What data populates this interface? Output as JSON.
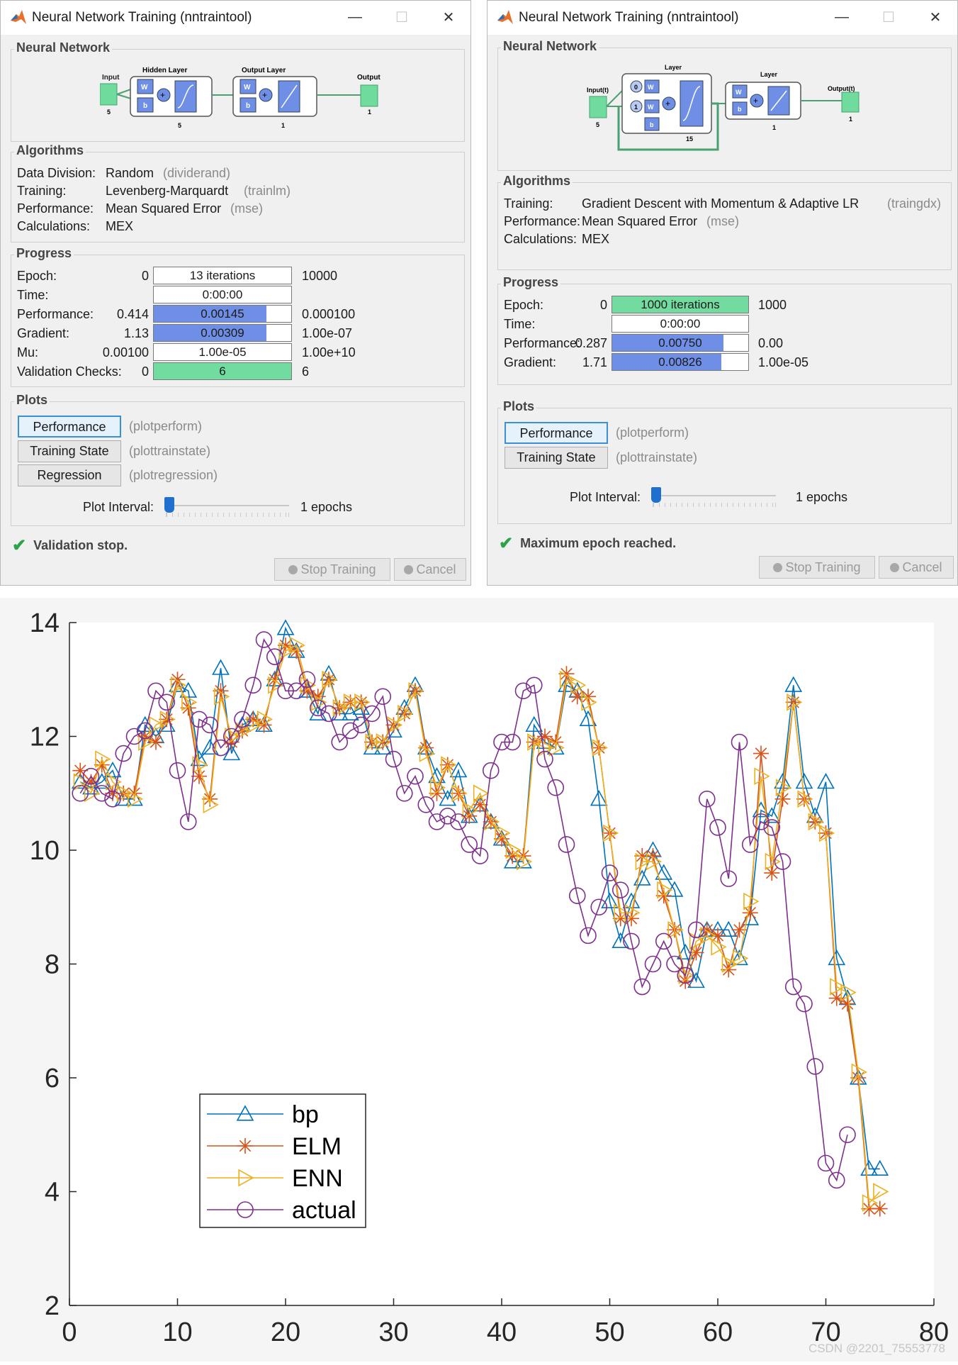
{
  "left_window": {
    "title": "Neural Network Training (nntraintool)",
    "network": {
      "group_title": "Neural Network",
      "input_label": "Input",
      "hidden_label": "Hidden Layer",
      "output_layer_label": "Output Layer",
      "output_label": "Output",
      "input_size": "5",
      "hidden_size": "5",
      "output_layer_size": "1",
      "output_size": "1",
      "w": "W",
      "b": "b"
    },
    "algorithms": {
      "group_title": "Algorithms",
      "rows": [
        {
          "label": "Data Division:",
          "value": "Random",
          "fn": "(dividerand)"
        },
        {
          "label": "Training:",
          "value": "Levenberg-Marquardt",
          "fn": "(trainlm)"
        },
        {
          "label": "Performance:",
          "value": "Mean Squared Error",
          "fn": "(mse)"
        },
        {
          "label": "Calculations:",
          "value": "MEX",
          "fn": ""
        }
      ]
    },
    "progress": {
      "group_title": "Progress",
      "rows": [
        {
          "label": "Epoch:",
          "min": "0",
          "value": "13 iterations",
          "max": "10000",
          "fill": 0,
          "color": "#ffffff"
        },
        {
          "label": "Time:",
          "min": "",
          "value": "0:00:00",
          "max": "",
          "fill": 0,
          "color": "#ffffff"
        },
        {
          "label": "Performance:",
          "min": "0.414",
          "value": "0.00145",
          "max": "0.000100",
          "fill": 0.82,
          "color": "#6f8fe6"
        },
        {
          "label": "Gradient:",
          "min": "1.13",
          "value": "0.00309",
          "max": "1.00e-07",
          "fill": 0.82,
          "color": "#6f8fe6"
        },
        {
          "label": "Mu:",
          "min": "0.00100",
          "value": "1.00e-05",
          "max": "1.00e+10",
          "fill": 0,
          "color": "#ffffff"
        },
        {
          "label": "Validation Checks:",
          "min": "0",
          "value": "6",
          "max": "6",
          "fill": 1,
          "color": "#72dca0"
        }
      ]
    },
    "plots": {
      "group_title": "Plots",
      "buttons": [
        {
          "label": "Performance",
          "fn": "(plotperform)"
        },
        {
          "label": "Training State",
          "fn": "(plottrainstate)"
        },
        {
          "label": "Regression",
          "fn": "(plotregression)"
        }
      ],
      "interval_label": "Plot Interval:",
      "interval_value": "1 epochs"
    },
    "status": "Validation stop.",
    "stop_label": "Stop Training",
    "cancel_label": "Cancel"
  },
  "right_window": {
    "title": "Neural Network Training (nntraintool)",
    "network": {
      "group_title": "Neural Network",
      "input_label": "Input(t)",
      "layer1_label": "Layer",
      "layer2_label": "Layer",
      "output_label": "Output(t)",
      "input_size": "5",
      "layer1_size": "15",
      "layer2_size": "1",
      "output_size": "1",
      "delay0": "0",
      "delay1": "1",
      "w": "W",
      "b": "b"
    },
    "algorithms": {
      "group_title": "Algorithms",
      "rows": [
        {
          "label": "Training:",
          "value": "Gradient Descent with Momentum & Adaptive LR",
          "fn": "(traingdx)"
        },
        {
          "label": "Performance:",
          "value": "Mean Squared Error",
          "fn": "(mse)"
        },
        {
          "label": "Calculations:",
          "value": "MEX",
          "fn": ""
        }
      ]
    },
    "progress": {
      "group_title": "Progress",
      "rows": [
        {
          "label": "Epoch:",
          "min": "0",
          "value": "1000 iterations",
          "max": "1000",
          "fill": 1,
          "color": "#72dca0"
        },
        {
          "label": "Time:",
          "min": "",
          "value": "0:00:00",
          "max": "",
          "fill": 0,
          "color": "#ffffff"
        },
        {
          "label": "Performance:",
          "min": "0.287",
          "value": "0.00750",
          "max": "0.00",
          "fill": 0.82,
          "color": "#6f8fe6"
        },
        {
          "label": "Gradient:",
          "min": "1.71",
          "value": "0.00826",
          "max": "1.00e-05",
          "fill": 0.8,
          "color": "#6f8fe6"
        }
      ]
    },
    "plots": {
      "group_title": "Plots",
      "buttons": [
        {
          "label": "Performance",
          "fn": "(plotperform)"
        },
        {
          "label": "Training State",
          "fn": "(plottrainstate)"
        }
      ],
      "interval_label": "Plot Interval:",
      "interval_value": "1 epochs"
    },
    "status": "Maximum epoch reached.",
    "stop_label": "Stop Training",
    "cancel_label": "Cancel"
  },
  "colors": {
    "bp": "#0072bd",
    "ELM": "#d95319",
    "ENN": "#edb120",
    "actual": "#7e2f8e"
  },
  "chart_data": {
    "type": "line",
    "title": "",
    "xlabel": "",
    "ylabel": "",
    "xlim": [
      0,
      80
    ],
    "ylim": [
      2,
      14
    ],
    "xticks": [
      0,
      10,
      20,
      30,
      40,
      50,
      60,
      70,
      80
    ],
    "yticks": [
      2,
      4,
      6,
      8,
      10,
      12,
      14
    ],
    "legend_position": "lower-left",
    "series": [
      {
        "name": "bp",
        "marker": "triangle",
        "values": [
          11.2,
          11.1,
          11.2,
          11.4,
          10.9,
          10.9,
          12.2,
          12.0,
          12.2,
          12.9,
          12.8,
          11.6,
          11.8,
          13.2,
          11.7,
          12.2,
          12.3,
          12.2,
          13.0,
          13.9,
          13.5,
          12.8,
          12.4,
          13.1,
          12.4,
          12.4,
          12.5,
          11.8,
          11.8,
          12.1,
          12.5,
          12.9,
          11.8,
          11.3,
          10.9,
          11.4,
          10.6,
          10.8,
          10.5,
          10.2,
          9.8,
          9.8,
          12.2,
          11.9,
          11.8,
          12.9,
          12.8,
          12.3,
          10.9,
          9.1,
          8.4,
          9.1,
          9.5,
          10.0,
          9.6,
          9.3,
          8.2,
          7.7,
          8.6,
          8.6,
          8.6,
          8.1,
          8.8,
          10.7,
          10.6,
          11.2,
          12.9,
          11.2,
          10.6,
          11.2,
          8.1,
          7.4,
          6.0,
          4.4,
          4.4
        ]
      },
      {
        "name": "ELM",
        "values": [
          11.4,
          11.2,
          11.5,
          11.0,
          11.0,
          11.0,
          12.0,
          11.9,
          12.3,
          13.0,
          12.5,
          11.3,
          10.9,
          12.8,
          11.9,
          12.1,
          12.3,
          12.2,
          13.0,
          13.6,
          13.5,
          12.8,
          12.7,
          13.0,
          12.5,
          12.6,
          12.6,
          11.9,
          11.9,
          12.2,
          12.4,
          12.8,
          11.8,
          11.0,
          11.5,
          11.0,
          10.6,
          10.8,
          10.5,
          10.2,
          9.9,
          9.9,
          11.9,
          12.0,
          11.9,
          13.1,
          12.7,
          12.7,
          11.8,
          10.3,
          8.8,
          8.8,
          9.9,
          9.9,
          9.2,
          8.6,
          7.7,
          8.2,
          8.6,
          8.5,
          7.9,
          8.6,
          8.9,
          11.7,
          9.6,
          10.9,
          12.6,
          10.9,
          10.5,
          10.3,
          7.4,
          7.3,
          6.0,
          3.7,
          3.7
        ]
      },
      {
        "name": "ENN",
        "values": [
          11.2,
          11.0,
          11.6,
          11.2,
          11.0,
          10.9,
          11.9,
          12.2,
          12.3,
          12.9,
          12.6,
          11.5,
          10.8,
          12.7,
          12.0,
          12.1,
          12.2,
          12.3,
          12.9,
          13.5,
          13.6,
          12.9,
          12.6,
          13.0,
          12.5,
          12.6,
          12.6,
          11.9,
          11.9,
          12.2,
          12.4,
          12.8,
          11.7,
          11.1,
          11.5,
          11.0,
          10.7,
          11.0,
          10.5,
          10.3,
          10.0,
          9.8,
          11.9,
          11.8,
          11.8,
          13.0,
          12.9,
          12.6,
          11.8,
          10.3,
          8.9,
          8.9,
          9.8,
          9.8,
          9.3,
          8.6,
          7.8,
          8.4,
          8.5,
          8.3,
          8.0,
          8.1,
          9.1,
          11.3,
          9.8,
          11.1,
          12.6,
          10.9,
          10.5,
          10.3,
          7.6,
          7.5,
          6.1,
          3.8,
          4.0
        ]
      },
      {
        "name": "actual",
        "values": [
          11.0,
          11.3,
          11.0,
          10.9,
          11.7,
          12.0,
          12.1,
          12.8,
          12.6,
          11.4,
          10.5,
          12.3,
          12.2,
          11.8,
          12.0,
          12.3,
          12.9,
          13.7,
          13.4,
          12.8,
          12.8,
          13.0,
          12.5,
          12.4,
          11.9,
          12.1,
          12.2,
          12.4,
          12.7,
          11.6,
          11.0,
          11.3,
          10.8,
          10.5,
          10.6,
          10.5,
          10.1,
          9.9,
          11.4,
          11.9,
          11.9,
          12.8,
          12.9,
          11.6,
          11.1,
          10.1,
          9.2,
          8.5,
          9.0,
          9.6,
          9.3,
          8.4,
          7.6,
          8.0,
          8.4,
          8.0,
          7.8,
          8.6,
          10.9,
          10.4,
          9.5,
          11.9,
          10.1,
          10.5,
          10.4,
          9.8,
          7.6,
          7.3,
          6.2,
          4.5,
          4.2,
          5.0
        ]
      }
    ]
  },
  "watermark": "CSDN @2201_75553778"
}
